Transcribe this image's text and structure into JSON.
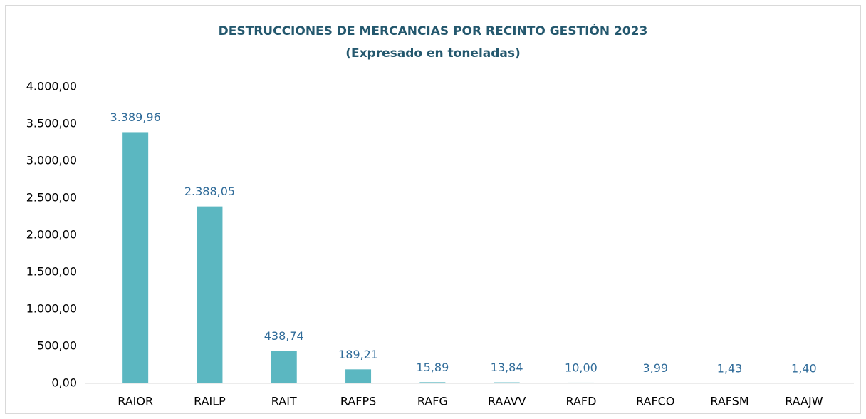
{
  "chart_data": {
    "type": "bar",
    "title": "DESTRUCCIONES DE MERCANCIAS POR RECINTO GESTIÓN  2023",
    "subtitle": "(Expresado en toneladas)",
    "categories": [
      "RAIOR",
      "RAILP",
      "RAIT",
      "RAFPS",
      "RAFG",
      "RAAVV",
      "RAFD",
      "RAFCO",
      "RAFSM",
      "RAAJW"
    ],
    "values": [
      3389.96,
      2388.05,
      438.74,
      189.21,
      15.89,
      13.84,
      10.0,
      3.99,
      1.43,
      1.4
    ],
    "value_labels": [
      "3.389,96",
      "2.388,05",
      "438,74",
      "189,21",
      "15,89",
      "13,84",
      "10,00",
      "3,99",
      "1,43",
      "1,40"
    ],
    "color": "#5bb7c1",
    "ylim": [
      0,
      4000
    ],
    "yticks": [
      {
        "value": 0,
        "label": "0,00"
      },
      {
        "value": 500,
        "label": "500,00"
      },
      {
        "value": 1000,
        "label": "1.000,00"
      },
      {
        "value": 1500,
        "label": "1.500,00"
      },
      {
        "value": 2000,
        "label": "2.000,00"
      },
      {
        "value": 2500,
        "label": "2.500,00"
      },
      {
        "value": 3000,
        "label": "3.000,00"
      },
      {
        "value": 3500,
        "label": "3.500,00"
      },
      {
        "value": 4000,
        "label": "4.000,00"
      }
    ],
    "grid": false
  }
}
